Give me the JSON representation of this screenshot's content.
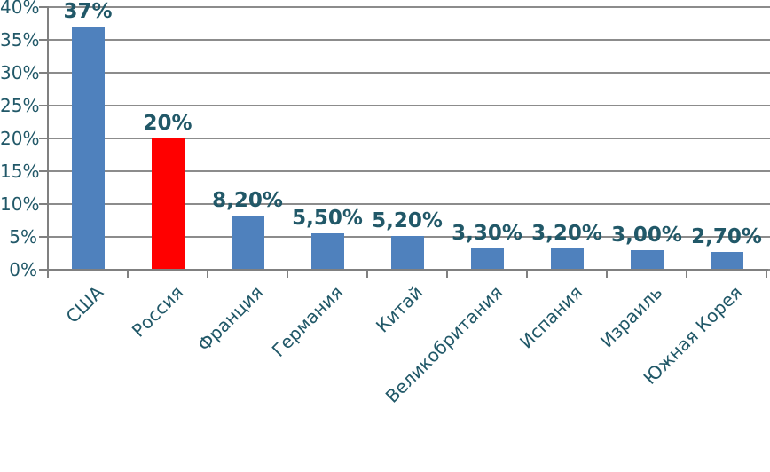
{
  "chart_data": {
    "type": "bar",
    "title": "",
    "xlabel": "",
    "ylabel": "",
    "categories": [
      "США",
      "Россия",
      "Франция",
      "Германия",
      "Китай",
      "Великобритания",
      "Испания",
      "Израиль",
      "Южная Корея"
    ],
    "values": [
      37,
      20,
      8.2,
      5.5,
      5.2,
      3.3,
      3.2,
      3.0,
      2.7
    ],
    "value_labels": [
      "37%",
      "20%",
      "8,20%",
      "5,50%",
      "5,20%",
      "3,30%",
      "3,20%",
      "3,00%",
      "2,70%"
    ],
    "highlighted_category": "Россия",
    "bar_colors": [
      "#4F81BD",
      "#FF0000",
      "#4F81BD",
      "#4F81BD",
      "#4F81BD",
      "#4F81BD",
      "#4F81BD",
      "#4F81BD",
      "#4F81BD"
    ],
    "ylim": [
      0,
      40
    ],
    "ytick_step": 5,
    "ytick_labels": [
      "0%",
      "5%",
      "10%",
      "15%",
      "20%",
      "25%",
      "30%",
      "35%",
      "40%"
    ],
    "grid": true,
    "legend": false,
    "colors": {
      "bar_blue": "#4F81BD",
      "bar_red": "#FF0000",
      "text": "#215868",
      "gridline": "#8C8C8C",
      "axis": "#808080"
    }
  }
}
